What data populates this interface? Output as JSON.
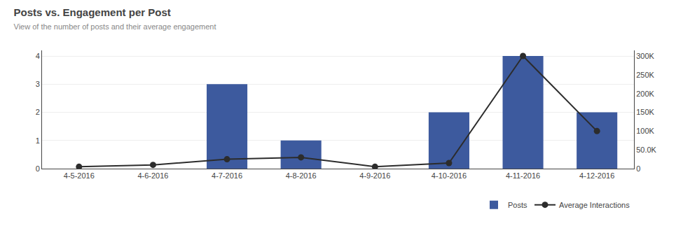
{
  "chart_data": {
    "type": "bar",
    "title": "Posts vs. Engagement per Post",
    "subtitle": "View of the number of posts and their average engagement",
    "categories": [
      "4-5-2016",
      "4-6-2016",
      "4-7-2016",
      "4-8-2016",
      "4-9-2016",
      "4-10-2016",
      "4-11-2016",
      "4-12-2016"
    ],
    "series": [
      {
        "name": "Posts",
        "type": "bar",
        "color": "#3d5a9e",
        "values": [
          0,
          0,
          3,
          1,
          0,
          2,
          4,
          2
        ]
      },
      {
        "name": "Average Interactions",
        "type": "line",
        "axis": "y2",
        "color": "#2c2c2c",
        "marker": "circle",
        "values": [
          5000,
          10000,
          25000,
          30000,
          5000,
          15000,
          300000,
          100000
        ]
      }
    ],
    "ylim": [
      0,
      4.2
    ],
    "yticks": [
      0,
      1,
      2,
      3,
      4
    ],
    "y2lim": [
      0,
      315000
    ],
    "y2ticks": [
      0,
      {
        "value": 50000,
        "label": "50.0K"
      },
      {
        "value": 100000,
        "label": "100K"
      },
      {
        "value": 150000,
        "label": "150K"
      },
      {
        "value": 200000,
        "label": "200K"
      },
      {
        "value": 250000,
        "label": "250K"
      },
      {
        "value": 300000,
        "label": "300K"
      }
    ],
    "grid": true,
    "legend": "lower right"
  }
}
